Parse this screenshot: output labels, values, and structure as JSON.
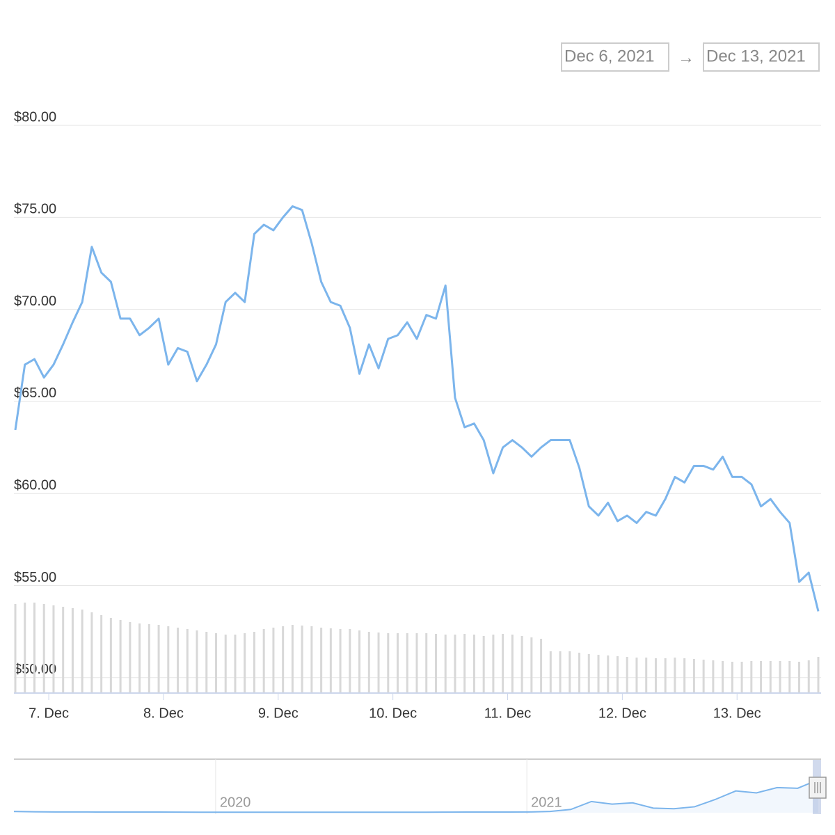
{
  "range_selector": {
    "from": "Dec 6, 2021",
    "arrow": "→",
    "to": "Dec 13, 2021"
  },
  "chart_data": {
    "type": "line",
    "color": "#7cb5ec",
    "grid": true,
    "values": [
      63.45,
      67.0,
      67.3,
      66.3,
      67.0,
      68.1,
      69.3,
      70.4,
      73.4,
      72.0,
      71.5,
      69.5,
      69.5,
      68.6,
      69.0,
      69.5,
      67.0,
      67.9,
      67.7,
      66.1,
      67.0,
      68.1,
      70.4,
      70.9,
      70.4,
      74.1,
      74.6,
      74.3,
      75.0,
      75.6,
      75.4,
      73.6,
      71.5,
      70.4,
      70.2,
      69.0,
      66.5,
      68.1,
      66.8,
      68.4,
      68.6,
      69.3,
      68.4,
      69.7,
      69.5,
      71.3,
      65.2,
      63.6,
      63.8,
      62.9,
      61.1,
      62.5,
      62.9,
      62.5,
      62.0,
      62.5,
      62.9,
      62.9,
      62.9,
      61.4,
      59.3,
      58.8,
      59.5,
      58.5,
      58.8,
      58.4,
      59.0,
      58.8,
      59.7,
      60.9,
      60.6,
      61.5,
      61.5,
      61.3,
      62.0,
      60.9,
      60.9,
      60.5,
      59.3,
      59.7,
      59.0,
      58.4,
      55.2,
      55.7,
      53.6
    ],
    "xlim": [
      0,
      84
    ],
    "xticks": [
      {
        "value": 3.5,
        "label": "7. Dec"
      },
      {
        "value": 15.5,
        "label": "8. Dec"
      },
      {
        "value": 27.5,
        "label": "9. Dec"
      },
      {
        "value": 39.5,
        "label": "10. Dec"
      },
      {
        "value": 51.5,
        "label": "11. Dec"
      },
      {
        "value": 63.5,
        "label": "12. Dec"
      },
      {
        "value": 75.5,
        "label": "13. Dec"
      }
    ],
    "ylim": [
      49.16,
      82.5
    ],
    "yticks": [
      {
        "value": 50,
        "label": "$50.00"
      },
      {
        "value": 55,
        "label": "$55.00"
      },
      {
        "value": 60,
        "label": "$60.00"
      },
      {
        "value": 65,
        "label": "$65.00"
      },
      {
        "value": 70,
        "label": "$70.00"
      },
      {
        "value": 75,
        "label": "$75.00"
      },
      {
        "value": 80,
        "label": "$80.00"
      }
    ],
    "volume": {
      "color": "#d8d8d8",
      "ylim": [
        0,
        140
      ],
      "values": [
        128,
        130,
        130,
        128,
        126,
        124,
        122,
        120,
        116,
        112,
        108,
        105,
        102,
        100,
        99,
        98,
        96,
        94,
        92,
        90,
        88,
        86,
        84,
        84,
        86,
        88,
        92,
        94,
        96,
        98,
        97,
        96,
        94,
        93,
        92,
        92,
        90,
        88,
        87,
        86,
        86,
        86,
        86,
        86,
        85,
        84,
        84,
        85,
        84,
        82,
        84,
        85,
        84,
        82,
        80,
        78,
        60,
        60,
        60,
        58,
        56,
        55,
        54,
        53,
        52,
        51,
        51,
        50,
        50,
        51,
        50,
        49,
        48,
        47,
        46,
        45,
        45,
        46,
        46,
        46,
        46,
        46,
        45,
        47,
        52
      ]
    },
    "navigator": {
      "color": "#7cb5ec",
      "ylim": [
        0,
        80
      ],
      "xlim": [
        0,
        39
      ],
      "values": [
        2,
        1.5,
        1.2,
        1.2,
        1.1,
        1,
        1,
        1,
        0.9,
        0.8,
        0.8,
        0.8,
        0.8,
        0.8,
        0.8,
        0.8,
        0.8,
        0.8,
        0.8,
        0.8,
        0.8,
        0.9,
        1,
        1,
        1,
        1.2,
        2,
        5,
        17,
        13,
        15,
        7,
        6,
        9,
        20,
        33,
        30,
        38,
        37,
        50
      ],
      "xticks": [
        {
          "value": 9.78,
          "label": "2020"
        },
        {
          "value": 24.87,
          "label": "2021"
        }
      ]
    }
  }
}
